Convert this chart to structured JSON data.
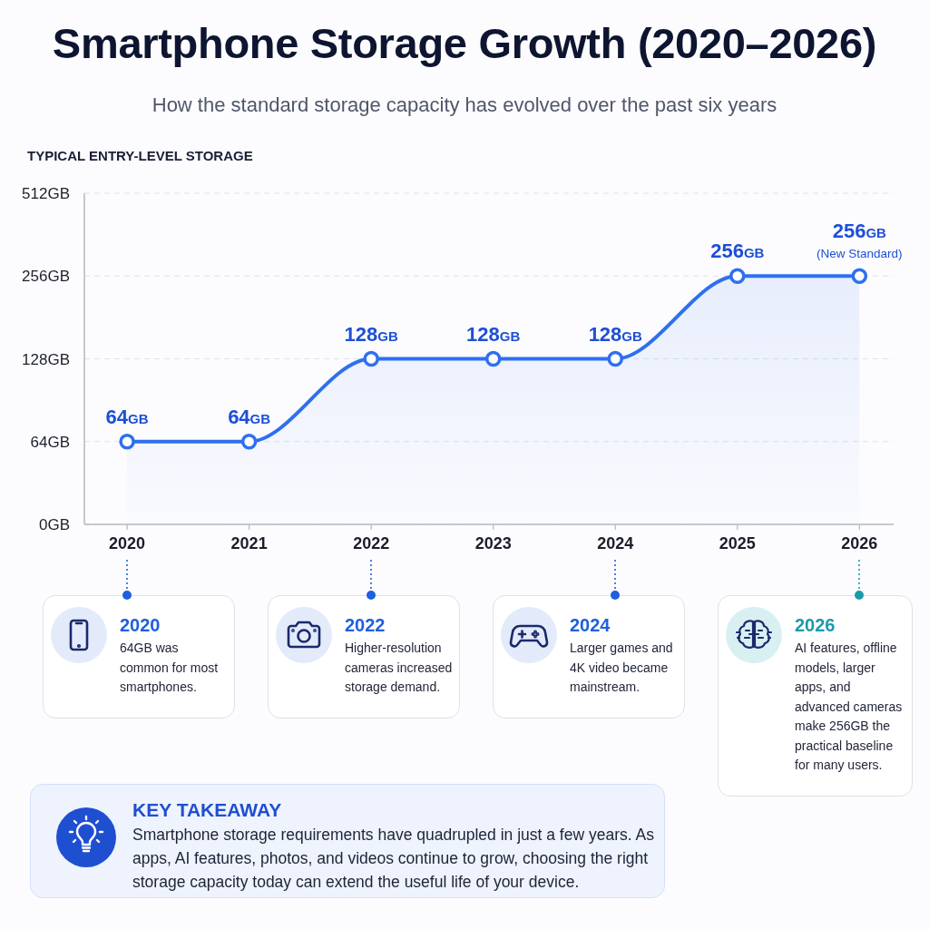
{
  "chart_data": {
    "type": "area",
    "title": "Smartphone Storage Growth (2020–2026)",
    "subtitle": "How the standard storage capacity has evolved over the past six years",
    "ylabel": "TYPICAL ENTRY-LEVEL STORAGE",
    "categories": [
      "2020",
      "2021",
      "2022",
      "2023",
      "2024",
      "2025",
      "2026"
    ],
    "values": [
      64,
      64,
      128,
      128,
      128,
      256,
      256
    ],
    "color": "#2f6ff0",
    "value_labels": [
      "64GB",
      "64GB",
      "128GB",
      "128GB",
      "128GB",
      "256GB",
      "256GB"
    ],
    "ylim": [
      0,
      512
    ],
    "yticks": [
      {
        "value": 0,
        "label": "0GB"
      },
      {
        "value": 64,
        "label": "64GB"
      },
      {
        "value": 128,
        "label": "128GB"
      },
      {
        "value": 256,
        "label": "256GB"
      },
      {
        "value": 512,
        "label": "512GB"
      }
    ],
    "log": true,
    "grid": "y",
    "marker": "circle",
    "line_style": "solid",
    "annotations": [
      {
        "text": "(New Standard)",
        "x": "2026",
        "y": 256
      },
      "2020",
      "64GB was common for most smartphones.",
      "2022",
      "Higher-resolution cameras increased storage demand.",
      "2024",
      "Larger games and 4K video became mainstream.",
      "2026",
      "AI features, offline models, larger apps, and advanced cameras make 256GB the practical baseline for many users.",
      "KEY TAKEAWAY",
      "Smartphone storage requirements have quadrupled in just a few years. As apps, AI features, photos, and videos continue to grow, choosing the right storage capacity today can extend the useful life of your device."
    ]
  }
}
